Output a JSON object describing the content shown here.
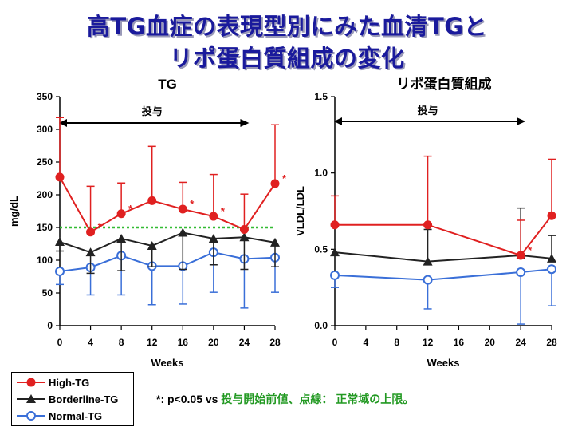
{
  "title": {
    "line1": "高TG血症の表現型別にみた血清TGと",
    "line2": "リポ蛋白質組成の変化"
  },
  "legend": {
    "items": [
      {
        "label": "High-TG",
        "color": "#e02020",
        "marker": "circle-filled"
      },
      {
        "label": "Borderline-TG",
        "color": "#222222",
        "marker": "triangle"
      },
      {
        "label": "Normal-TG",
        "color": "#3a6fd8",
        "marker": "circle-open"
      }
    ]
  },
  "footnote": {
    "prefix": "*: p<0.05 vs ",
    "highlight": "投与開始前値、点線：  正常域の上限。"
  },
  "chart_data": [
    {
      "type": "line",
      "title": "TG",
      "xlabel": "Weeks",
      "ylabel": "mg/dL",
      "xlim": [
        0,
        28
      ],
      "ylim": [
        0,
        350
      ],
      "xticks": [
        0,
        4,
        8,
        12,
        16,
        20,
        24,
        28
      ],
      "yticks": [
        0,
        50,
        100,
        150,
        200,
        250,
        300,
        350
      ],
      "ytick_labels": [
        "0",
        "50",
        "100",
        "150",
        "200",
        "250",
        "300",
        "350"
      ],
      "dosing_label": "投与",
      "dosing_range": [
        0,
        24
      ],
      "normal_upper_limit": 150,
      "x": [
        0,
        4,
        8,
        12,
        16,
        20,
        24,
        28
      ],
      "series": [
        {
          "name": "High-TG",
          "color": "#e02020",
          "marker": "circle-filled",
          "values": [
            227,
            143,
            171,
            191,
            178,
            167,
            147,
            217
          ],
          "err_up": [
            91,
            70,
            47,
            83,
            41,
            64,
            54,
            90
          ],
          "err_down": [
            0,
            0,
            0,
            0,
            0,
            0,
            0,
            0
          ],
          "significant": [
            false,
            true,
            true,
            false,
            true,
            true,
            false,
            true
          ]
        },
        {
          "name": "Borderline-TG",
          "color": "#222222",
          "marker": "triangle",
          "values": [
            128,
            112,
            133,
            122,
            142,
            133,
            135,
            127
          ],
          "err_up": [
            0,
            0,
            0,
            0,
            0,
            0,
            0,
            0
          ],
          "err_down": [
            14,
            32,
            49,
            32,
            56,
            40,
            49,
            37
          ],
          "significant": [
            false,
            false,
            false,
            false,
            false,
            false,
            false,
            false
          ]
        },
        {
          "name": "Normal-TG",
          "color": "#3a6fd8",
          "marker": "circle-open",
          "values": [
            83,
            89,
            107,
            91,
            91,
            112,
            102,
            104
          ],
          "err_up": [
            0,
            0,
            0,
            0,
            0,
            0,
            0,
            0
          ],
          "err_down": [
            20,
            42,
            60,
            59,
            58,
            61,
            75,
            53
          ],
          "significant": [
            false,
            false,
            false,
            false,
            false,
            false,
            false,
            false
          ]
        }
      ]
    },
    {
      "type": "line",
      "title": "リポ蛋白質組成",
      "xlabel": "Weeks",
      "ylabel": "VLDL/LDL",
      "xlim": [
        0,
        28
      ],
      "ylim": [
        0,
        1.5
      ],
      "xticks": [
        0,
        4,
        8,
        12,
        16,
        20,
        24,
        28
      ],
      "yticks": [
        0,
        0.5,
        1.0,
        1.5
      ],
      "ytick_labels": [
        "0.0",
        "0.5",
        "1.0",
        "1.5"
      ],
      "dosing_label": "投与",
      "dosing_range": [
        0,
        24
      ],
      "x": [
        0,
        12,
        24,
        28
      ],
      "series": [
        {
          "name": "High-TG",
          "color": "#e02020",
          "marker": "circle-filled",
          "values": [
            0.66,
            0.66,
            0.46,
            0.72
          ],
          "err_up": [
            0.19,
            0.45,
            0.23,
            0.37
          ],
          "err_down": [
            0,
            0,
            0,
            0
          ],
          "significant": [
            false,
            false,
            true,
            false
          ]
        },
        {
          "name": "Borderline-TG",
          "color": "#222222",
          "marker": "triangle",
          "values": [
            0.48,
            0.42,
            0.46,
            0.44
          ],
          "err_up": [
            0,
            0.21,
            0.31,
            0.15
          ],
          "err_down": [
            0,
            0,
            0,
            0
          ],
          "significant": [
            false,
            false,
            false,
            false
          ]
        },
        {
          "name": "Normal-TG",
          "color": "#3a6fd8",
          "marker": "circle-open",
          "values": [
            0.33,
            0.3,
            0.35,
            0.37
          ],
          "err_up": [
            0,
            0,
            0,
            0
          ],
          "err_down": [
            0.08,
            0.19,
            0.34,
            0.24
          ],
          "significant": [
            false,
            false,
            false,
            false
          ]
        }
      ]
    }
  ]
}
